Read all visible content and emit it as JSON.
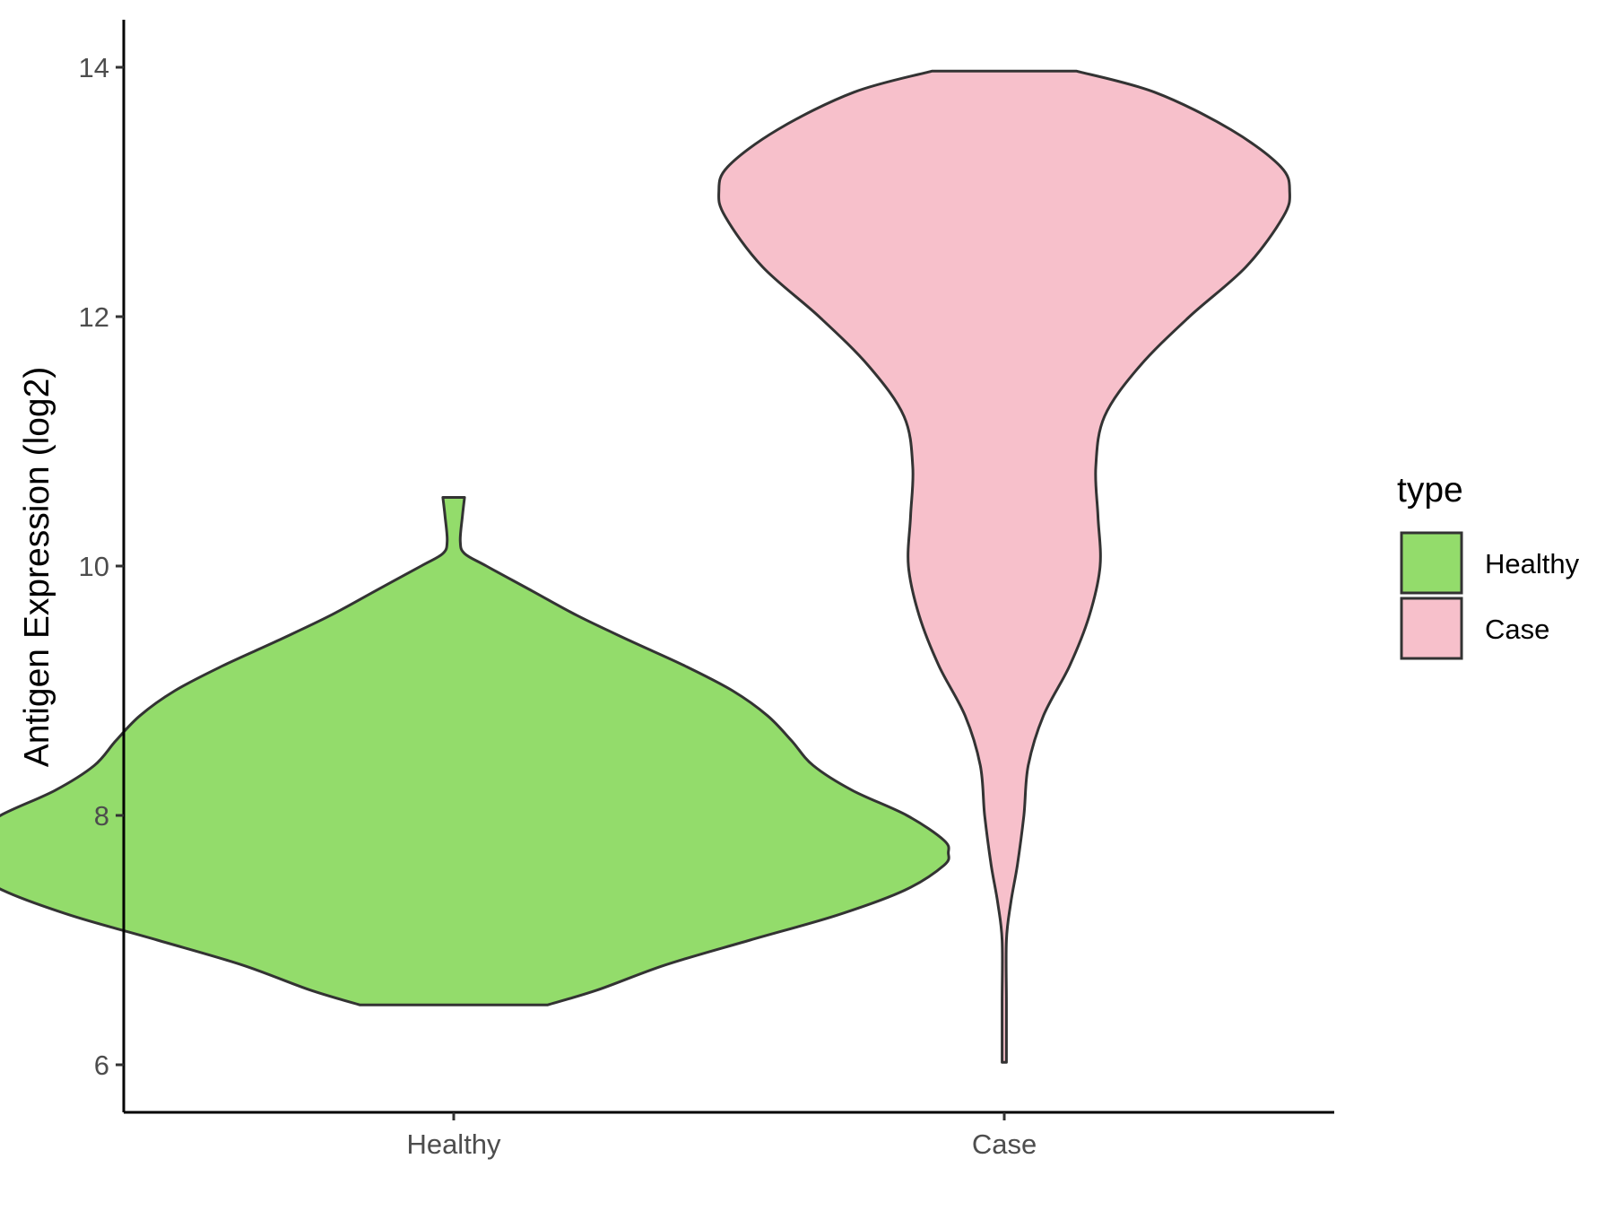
{
  "chart_data": {
    "type": "violin",
    "title": "",
    "xlabel": "",
    "ylabel": "Antigen Expression (log2)",
    "categories": [
      "Healthy",
      "Case"
    ],
    "ylim": [
      5.6,
      14.4
    ],
    "yticks": [
      6,
      8,
      10,
      12,
      14
    ],
    "grid": false,
    "legend": {
      "title": "type",
      "position": "right",
      "entries": [
        "Healthy",
        "Case"
      ]
    },
    "series": [
      {
        "name": "Healthy",
        "color": "#93dc6b",
        "min": 6.48,
        "max": 10.55,
        "profile": [
          [
            6.48,
            0.43
          ],
          [
            6.6,
            0.66
          ],
          [
            6.8,
            0.97
          ],
          [
            7.0,
            1.36
          ],
          [
            7.2,
            1.76
          ],
          [
            7.4,
            2.07
          ],
          [
            7.6,
            2.25
          ],
          [
            7.7,
            2.27
          ],
          [
            7.8,
            2.25
          ],
          [
            8.0,
            2.08
          ],
          [
            8.2,
            1.83
          ],
          [
            8.4,
            1.65
          ],
          [
            8.6,
            1.55
          ],
          [
            8.8,
            1.44
          ],
          [
            9.0,
            1.28
          ],
          [
            9.2,
            1.06
          ],
          [
            9.4,
            0.81
          ],
          [
            9.6,
            0.57
          ],
          [
            9.8,
            0.36
          ],
          [
            10.0,
            0.15
          ],
          [
            10.1,
            0.05
          ],
          [
            10.2,
            0.03
          ],
          [
            10.4,
            0.04
          ],
          [
            10.55,
            0.05
          ]
        ]
      },
      {
        "name": "Case",
        "color": "#f7c0cb",
        "min": 6.02,
        "max": 13.97,
        "profile": [
          [
            6.02,
            0.01
          ],
          [
            6.5,
            0.01
          ],
          [
            7.0,
            0.01
          ],
          [
            7.3,
            0.03
          ],
          [
            7.6,
            0.06
          ],
          [
            8.0,
            0.09
          ],
          [
            8.4,
            0.11
          ],
          [
            8.8,
            0.18
          ],
          [
            9.2,
            0.3
          ],
          [
            9.6,
            0.39
          ],
          [
            10.0,
            0.44
          ],
          [
            10.4,
            0.43
          ],
          [
            10.8,
            0.42
          ],
          [
            11.2,
            0.46
          ],
          [
            11.6,
            0.62
          ],
          [
            12.0,
            0.85
          ],
          [
            12.4,
            1.11
          ],
          [
            12.8,
            1.28
          ],
          [
            13.0,
            1.31
          ],
          [
            13.2,
            1.27
          ],
          [
            13.5,
            1.04
          ],
          [
            13.8,
            0.69
          ],
          [
            13.97,
            0.33
          ]
        ]
      }
    ]
  }
}
